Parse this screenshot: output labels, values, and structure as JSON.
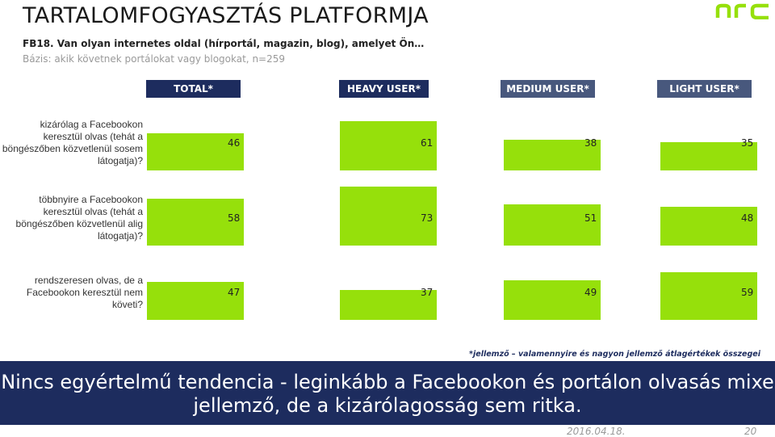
{
  "title": "TARTALOMFOGYASZTÁS PLATFORMJA",
  "question": "FB18. Van olyan internetes oldal (hírportál, magazin, blog), amelyet Ön…",
  "base": "Bázis: akik követnek portálokat vagy blogokat, n=259",
  "logo_text": "nrc",
  "colors": {
    "bar": "#96e00b",
    "header_dark": "#1d2c5e",
    "header_light": "#48587d",
    "banner": "#1d2c5e"
  },
  "chart_data": {
    "type": "bar",
    "categories": [
      "kizárólag a Facebookon keresztül olvas (tehát a böngészőben közvetlenül sosem látogatja)?",
      "többnyire a Facebookon keresztül olvas (tehát a böngészőben közvetlenül alig látogatja)?",
      "rendszeresen olvas, de a Facebookon keresztül nem követi?"
    ],
    "series": [
      {
        "name": "TOTAL*",
        "values": [
          46,
          58,
          47
        ]
      },
      {
        "name": "HEAVY USER*",
        "values": [
          61,
          73,
          37
        ]
      },
      {
        "name": "MEDIUM USER*",
        "values": [
          38,
          51,
          49
        ]
      },
      {
        "name": "LIGHT USER*",
        "values": [
          35,
          48,
          59
        ]
      }
    ],
    "orientation": "vertical",
    "grid": false
  },
  "footnote": "*jellemző – valamennyire és nagyon jellemző átlagértékek összegei",
  "conclusion": "Nincs egyértelmű tendencia - leginkább a Facebookon és portálon olvasás mixe jellemző, de a kizárólagosság sem ritka.",
  "date": "2016.04.18.",
  "page_number": "20"
}
